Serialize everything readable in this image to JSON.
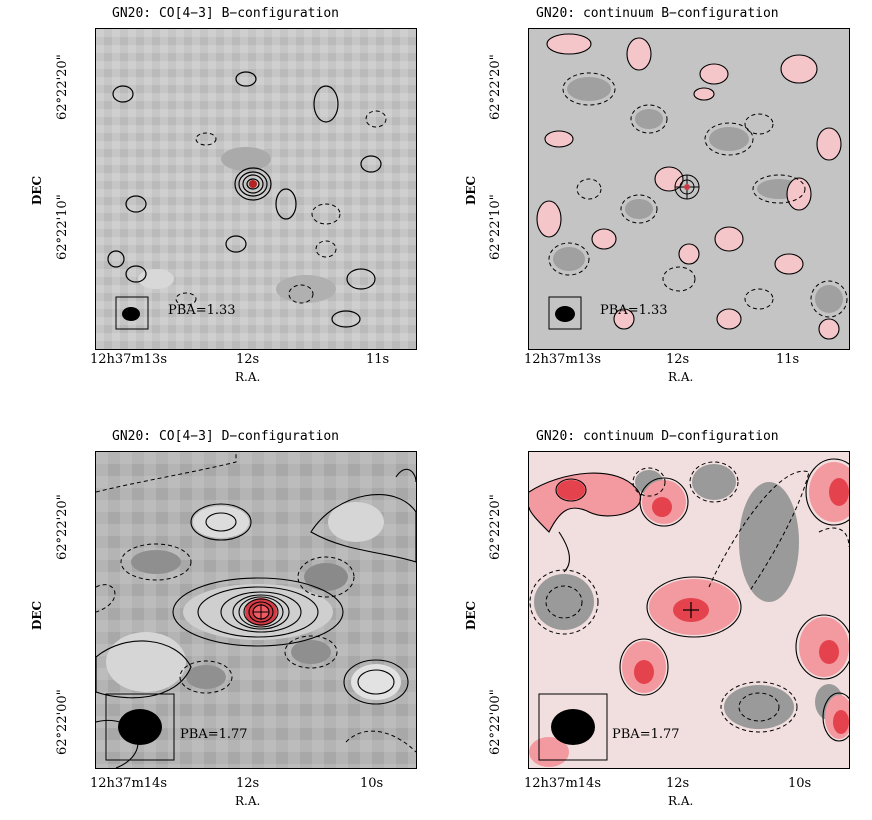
{
  "panels": [
    {
      "title": "GN20: CO[4−3] B−configuration",
      "ylabel": "DEC",
      "xlabel": "R.A.",
      "yticks": [
        "62°22'20\"",
        "62°22'10\""
      ],
      "xticks": [
        "12h37m13s",
        "12s",
        "11s"
      ],
      "pba": "PBA=1.33",
      "colormap": "grey"
    },
    {
      "title": "GN20: continuum B−configuration",
      "ylabel": "DEC",
      "xlabel": "R.A.",
      "yticks": [
        "62°22'20\"",
        "62°22'10\""
      ],
      "xticks": [
        "12h37m13s",
        "12s",
        "11s"
      ],
      "pba": "PBA=1.33",
      "colormap": "grey-red"
    },
    {
      "title": "GN20: CO[4−3] D−configuration",
      "ylabel": "DEC",
      "xlabel": "R.A.",
      "yticks": [
        "62°22'20\"",
        "62°22'00\""
      ],
      "xticks": [
        "12h37m14s",
        "12s",
        "10s"
      ],
      "pba": "PBA=1.77",
      "colormap": "grey"
    },
    {
      "title": "GN20: continuum D−configuration",
      "ylabel": "DEC",
      "xlabel": "R.A.",
      "yticks": [
        "62°22'20\"",
        "62°22'00\""
      ],
      "xticks": [
        "12h37m14s",
        "12s",
        "10s"
      ],
      "pba": "PBA=1.77",
      "colormap": "pink-red"
    }
  ],
  "colors": {
    "background_grey": "#bdbdbd",
    "dark_grey": "#7a7a7a",
    "peak_red": "#e0404a",
    "pink": "#f7c9cc"
  }
}
